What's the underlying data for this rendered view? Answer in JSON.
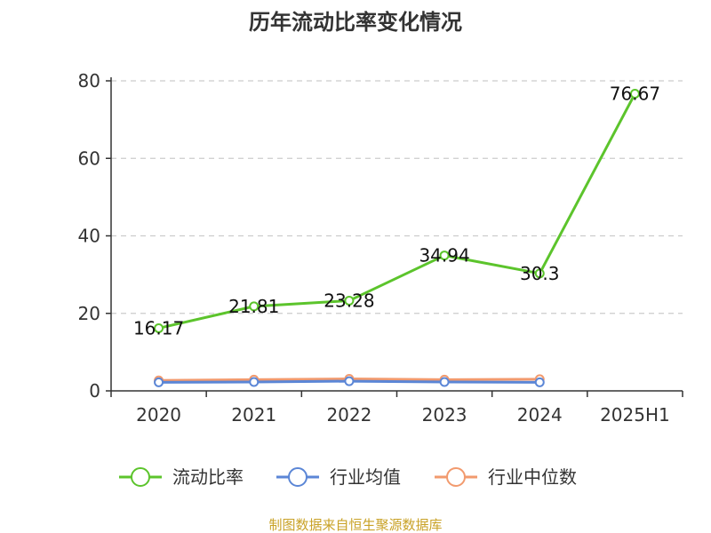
{
  "chart_data": {
    "type": "line",
    "title": "历年流动比率变化情况",
    "categories": [
      "2020",
      "2021",
      "2022",
      "2023",
      "2024",
      "2025H1"
    ],
    "yticks": [
      "0",
      "20",
      "40",
      "60",
      "80"
    ],
    "ylim": [
      0,
      80
    ],
    "grid": true,
    "legend_position": "bottom",
    "series": [
      {
        "name": "流动比率",
        "values": [
          16.17,
          21.81,
          23.28,
          34.94,
          30.3,
          76.67
        ],
        "color": "#5cc42c",
        "labels": [
          "16.17",
          "21.81",
          "23.28",
          "34.94",
          "30.3",
          "76.67"
        ]
      },
      {
        "name": "行业均值",
        "values": [
          2.2,
          2.3,
          2.5,
          2.3,
          2.2,
          null
        ],
        "color": "#5b86d6"
      },
      {
        "name": "行业中位数",
        "values": [
          2.7,
          2.9,
          3.1,
          2.9,
          3.0,
          null
        ],
        "color": "#f29a6e"
      }
    ]
  },
  "source": "制图数据来自恒生聚源数据库"
}
